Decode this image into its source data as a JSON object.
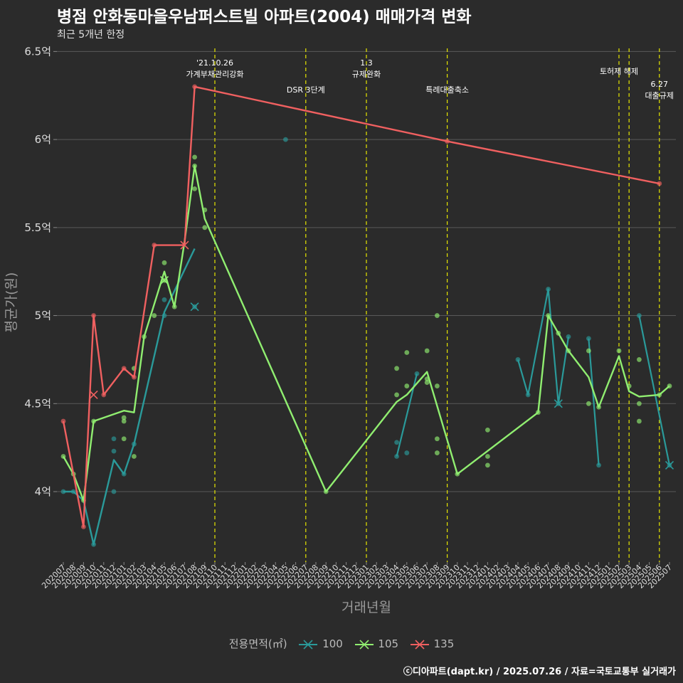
{
  "header": {
    "title": "병점 안화동마을우남퍼스트빌 아파트(2004) 매매가격 변화",
    "subtitle": "최근 5개년 한정"
  },
  "caption": "ⓒ디아파트(dapt.kr) / 2025.07.26 / 자료=국토교통부 실거래가",
  "legend": {
    "title": "전용면적(㎡)",
    "items": [
      {
        "label": "100",
        "color": "#2a9a9a"
      },
      {
        "label": "105",
        "color": "#90ee70"
      },
      {
        "label": "135",
        "color": "#f06060"
      }
    ]
  },
  "chart_data": {
    "type": "line",
    "xlabel": "거래년월",
    "ylabel": "평균가(원)",
    "ylim": [
      3.6,
      6.55
    ],
    "yticks": [
      {
        "v": 4.0,
        "label": "4억"
      },
      {
        "v": 4.5,
        "label": "4.5억"
      },
      {
        "v": 5.0,
        "label": "5억"
      },
      {
        "v": 5.5,
        "label": "5.5억"
      },
      {
        "v": 6.0,
        "label": "6억"
      },
      {
        "v": 6.5,
        "label": "6.5억"
      }
    ],
    "categories": [
      "202007",
      "202008",
      "202009",
      "202010",
      "202011",
      "202012",
      "202101",
      "202102",
      "202103",
      "202104",
      "202105",
      "202106",
      "202107",
      "202108",
      "202109",
      "202110",
      "202111",
      "202112",
      "202201",
      "202202",
      "202203",
      "202204",
      "202205",
      "202206",
      "202207",
      "202208",
      "202209",
      "202210",
      "202211",
      "202212",
      "202301",
      "202302",
      "202303",
      "202304",
      "202305",
      "202306",
      "202307",
      "202308",
      "202309",
      "202310",
      "202311",
      "202312",
      "202401",
      "202402",
      "202403",
      "202404",
      "202405",
      "202406",
      "202407",
      "202408",
      "202409",
      "202410",
      "202411",
      "202412",
      "202501",
      "202502",
      "202503",
      "202504",
      "202505",
      "202506",
      "202507"
    ],
    "events": [
      {
        "x": "202110",
        "lines": [
          "'21.10.26",
          "가계부채관리강화"
        ],
        "level": 0
      },
      {
        "x": "202207",
        "lines": [
          "DSR 3단계"
        ],
        "level": 2
      },
      {
        "x": "202301",
        "lines": [
          "1.3",
          "규제완화"
        ],
        "level": 0
      },
      {
        "x": "202309",
        "lines": [
          "특례대출축소"
        ],
        "level": 2
      },
      {
        "x": "202502",
        "lines": [
          "토허제 해제"
        ],
        "level": 1
      },
      {
        "x": "202503",
        "lines": [],
        "level": 1
      },
      {
        "x": "202506",
        "lines": [
          "6.27",
          "대출규제"
        ],
        "level": 3
      }
    ],
    "series": [
      {
        "name": "100",
        "color": "#2a9a9a",
        "line": [
          [
            "202007",
            4.0
          ],
          [
            "202008",
            4.0
          ],
          [
            "202009",
            3.95
          ],
          [
            "202010",
            3.7
          ],
          [
            "202012",
            4.18
          ],
          [
            "202101",
            4.1
          ],
          [
            "202102",
            4.27
          ],
          [
            "202105",
            5.02
          ],
          [
            "202108",
            5.38
          ]
        ],
        "points": [
          [
            "202007",
            4.0
          ],
          [
            "202008",
            4.0
          ],
          [
            "202010",
            3.7
          ],
          [
            "202012",
            4.3
          ],
          [
            "202012",
            4.23
          ],
          [
            "202012",
            4.0
          ],
          [
            "202101",
            4.1
          ],
          [
            "202102",
            4.27
          ],
          [
            "202105",
            5.0
          ],
          [
            "202105",
            5.09
          ],
          [
            "202108",
            5.05
          ],
          [
            "202205",
            6.0
          ],
          [
            "202304",
            4.2
          ],
          [
            "202304",
            4.28
          ],
          [
            "202305",
            4.22
          ],
          [
            "202306",
            4.67
          ],
          [
            "202404",
            4.75
          ],
          [
            "202405",
            4.55
          ],
          [
            "202407",
            5.15
          ],
          [
            "202408",
            4.5
          ],
          [
            "202409",
            4.88
          ],
          [
            "202411",
            4.87
          ],
          [
            "202412",
            4.15
          ],
          [
            "202504",
            5.0
          ],
          [
            "202507",
            4.15
          ]
        ],
        "segments": [
          [
            [
              "202304",
              4.2
            ],
            [
              "202306",
              4.67
            ]
          ],
          [
            [
              "202404",
              4.75
            ],
            [
              "202405",
              4.55
            ],
            [
              "202407",
              5.15
            ],
            [
              "202408",
              4.5
            ],
            [
              "202409",
              4.88
            ]
          ],
          [
            [
              "202411",
              4.87
            ],
            [
              "202412",
              4.15
            ]
          ],
          [
            [
              "202504",
              5.0
            ],
            [
              "202507",
              4.15
            ]
          ]
        ],
        "crosses": [
          [
            "202108",
            5.05
          ],
          [
            "202408",
            4.5
          ],
          [
            "202507",
            4.15
          ]
        ]
      },
      {
        "name": "105",
        "color": "#90ee70",
        "line": [
          [
            "202007",
            4.2
          ],
          [
            "202008",
            4.1
          ],
          [
            "202009",
            3.95
          ],
          [
            "202010",
            4.4
          ],
          [
            "202101",
            4.46
          ],
          [
            "202102",
            4.45
          ],
          [
            "202103",
            4.88
          ],
          [
            "202105",
            5.25
          ],
          [
            "202106",
            5.05
          ],
          [
            "202107",
            5.42
          ],
          [
            "202108",
            5.85
          ],
          [
            "202109",
            5.55
          ],
          [
            "202209",
            4.0
          ],
          [
            "202304",
            4.51
          ],
          [
            "202305",
            4.55
          ],
          [
            "202307",
            4.68
          ],
          [
            "202310",
            4.1
          ],
          [
            "202406",
            4.45
          ],
          [
            "202407",
            5.0
          ],
          [
            "202408",
            4.9
          ],
          [
            "202409",
            4.8
          ],
          [
            "202411",
            4.65
          ],
          [
            "202412",
            4.48
          ],
          [
            "202502",
            4.77
          ],
          [
            "202503",
            4.57
          ],
          [
            "202504",
            4.54
          ],
          [
            "202506",
            4.55
          ],
          [
            "202507",
            4.6
          ]
        ],
        "points": [
          [
            "202007",
            4.2
          ],
          [
            "202008",
            4.1
          ],
          [
            "202009",
            3.95
          ],
          [
            "202010",
            4.4
          ],
          [
            "202101",
            4.42
          ],
          [
            "202101",
            4.4
          ],
          [
            "202101",
            4.3
          ],
          [
            "202102",
            4.2
          ],
          [
            "202102",
            4.7
          ],
          [
            "202103",
            4.88
          ],
          [
            "202104",
            5.0
          ],
          [
            "202105",
            5.3
          ],
          [
            "202105",
            5.2
          ],
          [
            "202106",
            5.05
          ],
          [
            "202108",
            5.9
          ],
          [
            "202108",
            5.85
          ],
          [
            "202108",
            5.72
          ],
          [
            "202109",
            5.6
          ],
          [
            "202109",
            5.5
          ],
          [
            "202209",
            4.0
          ],
          [
            "202304",
            4.7
          ],
          [
            "202304",
            4.55
          ],
          [
            "202305",
            4.79
          ],
          [
            "202305",
            4.6
          ],
          [
            "202307",
            4.8
          ],
          [
            "202307",
            4.62
          ],
          [
            "202307",
            4.64
          ],
          [
            "202308",
            5.0
          ],
          [
            "202308",
            4.6
          ],
          [
            "202308",
            4.3
          ],
          [
            "202308",
            4.22
          ],
          [
            "202310",
            4.1
          ],
          [
            "202401",
            4.35
          ],
          [
            "202401",
            4.2
          ],
          [
            "202401",
            4.15
          ],
          [
            "202406",
            4.45
          ],
          [
            "202407",
            5.0
          ],
          [
            "202408",
            4.9
          ],
          [
            "202409",
            4.8
          ],
          [
            "202411",
            4.8
          ],
          [
            "202411",
            4.5
          ],
          [
            "202412",
            4.48
          ],
          [
            "202502",
            4.8
          ],
          [
            "202503",
            4.6
          ],
          [
            "202504",
            4.75
          ],
          [
            "202504",
            4.5
          ],
          [
            "202504",
            4.4
          ],
          [
            "202506",
            4.55
          ],
          [
            "202507",
            4.6
          ]
        ],
        "crosses": [
          [
            "202105",
            5.2
          ]
        ]
      },
      {
        "name": "135",
        "color": "#f06060",
        "line": [
          [
            "202007",
            4.4
          ],
          [
            "202009",
            3.8
          ],
          [
            "202010",
            5.0
          ],
          [
            "202011",
            4.55
          ],
          [
            "202101",
            4.7
          ],
          [
            "202102",
            4.65
          ],
          [
            "202104",
            5.4
          ],
          [
            "202107",
            5.4
          ],
          [
            "202108",
            6.3
          ],
          [
            "202309",
            5.99
          ],
          [
            "202506",
            5.75
          ]
        ],
        "points": [
          [
            "202007",
            4.4
          ],
          [
            "202009",
            3.8
          ],
          [
            "202010",
            5.0
          ],
          [
            "202011",
            4.55
          ],
          [
            "202101",
            4.7
          ],
          [
            "202102",
            4.65
          ],
          [
            "202104",
            5.4
          ],
          [
            "202108",
            6.3
          ],
          [
            "202309",
            5.99
          ],
          [
            "202506",
            5.75
          ]
        ],
        "crosses": [
          [
            "202010",
            4.55
          ],
          [
            "202107",
            5.4
          ]
        ]
      }
    ]
  }
}
